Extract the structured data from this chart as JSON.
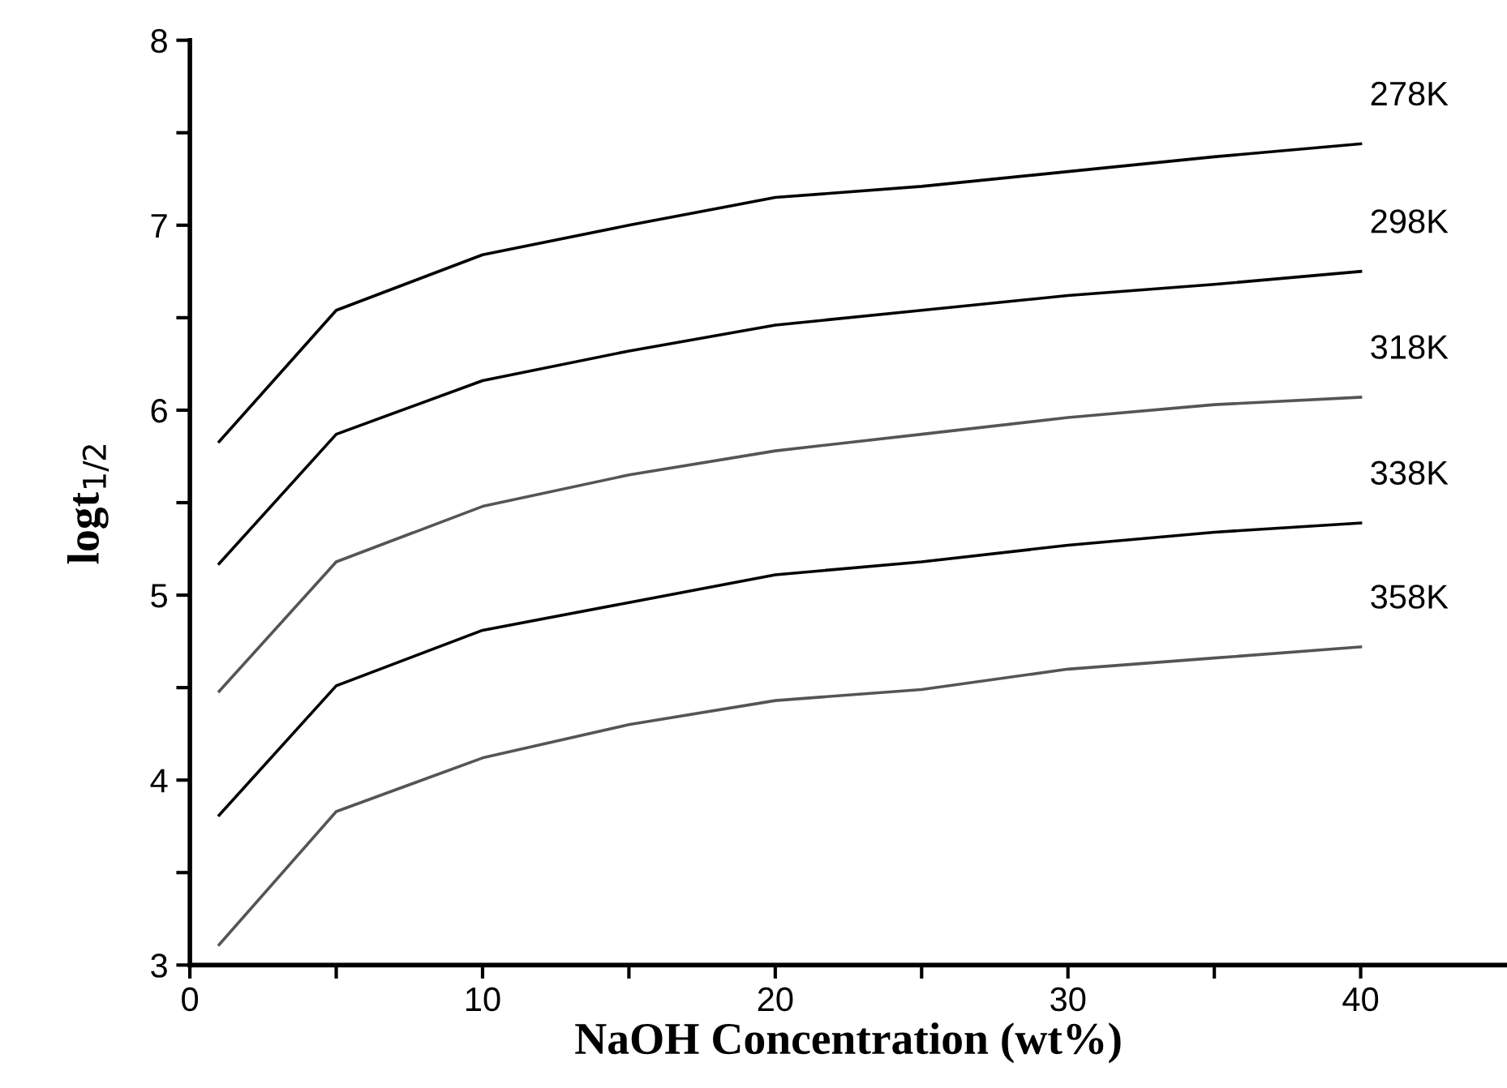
{
  "chart_data": {
    "type": "line",
    "xlabel": "NaOH Concentration (wt%)",
    "ylabel": "logt$_{1/2}$",
    "x": [
      1,
      5,
      10,
      15,
      20,
      25,
      30,
      35,
      40
    ],
    "series": [
      {
        "name": "278K",
        "color": "#000000",
        "values": [
          5.83,
          6.54,
          6.84,
          7.0,
          7.15,
          7.21,
          7.29,
          7.37,
          7.44
        ]
      },
      {
        "name": "298K",
        "color": "#000000",
        "values": [
          5.17,
          5.87,
          6.16,
          6.32,
          6.46,
          6.54,
          6.62,
          6.68,
          6.75
        ]
      },
      {
        "name": "318K",
        "color": "#555555",
        "values": [
          4.48,
          5.18,
          5.48,
          5.65,
          5.78,
          5.87,
          5.96,
          6.03,
          6.07
        ]
      },
      {
        "name": "338K",
        "color": "#000000",
        "values": [
          3.81,
          4.51,
          4.81,
          4.96,
          5.11,
          5.18,
          5.27,
          5.34,
          5.39
        ]
      },
      {
        "name": "358K",
        "color": "#555555",
        "values": [
          3.11,
          3.83,
          4.12,
          4.3,
          4.43,
          4.49,
          4.6,
          4.66,
          4.72
        ]
      }
    ],
    "xlim": [
      0,
      45
    ],
    "ylim": [
      3,
      8
    ],
    "xticks": [
      0,
      {
        "value": 5,
        "label": null
      },
      10,
      {
        "value": 15,
        "label": null
      },
      20,
      {
        "value": 25,
        "label": null
      },
      30,
      {
        "value": 35,
        "label": null
      },
      40
    ],
    "yticks": [
      3,
      {
        "value": 3.5,
        "label": null
      },
      4,
      {
        "value": 4.5,
        "label": null
      },
      5,
      {
        "value": 5.5,
        "label": null
      },
      6,
      {
        "value": 6.5,
        "label": null
      },
      7,
      {
        "value": 7.5,
        "label": null
      },
      8
    ],
    "grid": false,
    "legend": false,
    "marker": "none",
    "line_style": "solid"
  }
}
